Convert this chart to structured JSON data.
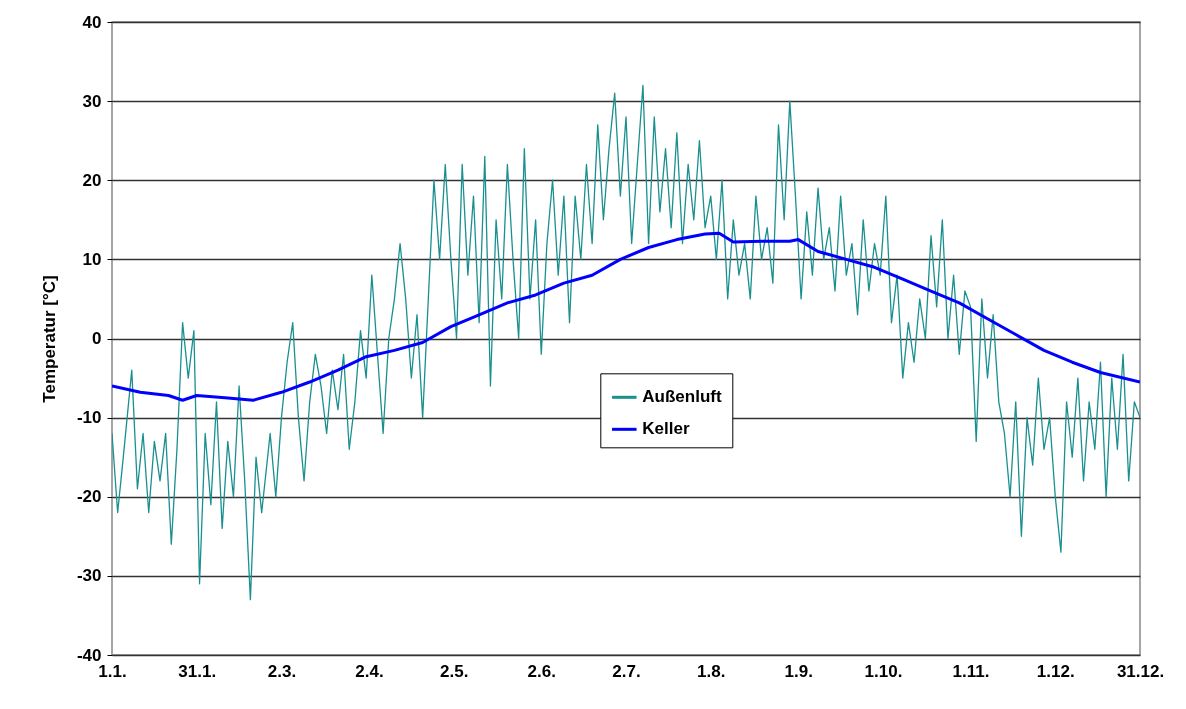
{
  "chart_data": {
    "type": "line",
    "ylabel": "Temperatur [°C]",
    "xlim": [
      "--01-01",
      "--12-31"
    ],
    "xticks": [
      {
        "value": "--01-01",
        "label": "1.1."
      },
      {
        "value": "--01-31",
        "label": "31.1."
      },
      {
        "value": "--03-02",
        "label": "2.3."
      },
      {
        "value": "--04-02",
        "label": "2.4."
      },
      {
        "value": "--05-02",
        "label": "2.5."
      },
      {
        "value": "--06-02",
        "label": "2.6."
      },
      {
        "value": "--07-02",
        "label": "2.7."
      },
      {
        "value": "--08-01",
        "label": "1.8."
      },
      {
        "value": "--09-01",
        "label": "1.9."
      },
      {
        "value": "--10-01",
        "label": "1.10."
      },
      {
        "value": "--11-01",
        "label": "1.11."
      },
      {
        "value": "--12-01",
        "label": "1.12."
      },
      {
        "value": "--12-31",
        "label": "31.12."
      }
    ],
    "ylim": [
      -40,
      40
    ],
    "yticks": [
      -40,
      -30,
      -20,
      -10,
      0,
      10,
      20,
      30,
      40
    ],
    "grid": "y",
    "legend": "center",
    "series": [
      {
        "name": "Außenluft",
        "color": "#1a8f8f",
        "x": [
          "--01-01",
          "--01-03",
          "--01-05",
          "--01-08",
          "--01-10",
          "--01-12",
          "--01-14",
          "--01-16",
          "--01-18",
          "--01-20",
          "--01-22",
          "--01-24",
          "--01-26",
          "--01-28",
          "--01-30",
          "--02-01",
          "--02-03",
          "--02-05",
          "--02-07",
          "--02-09",
          "--02-11",
          "--02-13",
          "--02-15",
          "--02-17",
          "--02-19",
          "--02-21",
          "--02-23",
          "--02-26",
          "--02-28",
          "--03-02",
          "--03-04",
          "--03-06",
          "--03-08",
          "--03-10",
          "--03-12",
          "--03-14",
          "--03-16",
          "--03-18",
          "--03-20",
          "--03-22",
          "--03-24",
          "--03-26",
          "--03-28",
          "--03-30",
          "--04-01",
          "--04-03",
          "--04-05",
          "--04-07",
          "--04-09",
          "--04-11",
          "--04-13",
          "--04-15",
          "--04-17",
          "--04-19",
          "--04-21",
          "--04-23",
          "--04-25",
          "--04-27",
          "--04-29",
          "--05-01",
          "--05-03",
          "--05-05",
          "--05-07",
          "--05-09",
          "--05-11",
          "--05-13",
          "--05-15",
          "--05-17",
          "--05-19",
          "--05-21",
          "--05-23",
          "--05-25",
          "--05-27",
          "--05-29",
          "--05-31",
          "--06-02",
          "--06-04",
          "--06-06",
          "--06-08",
          "--06-10",
          "--06-12",
          "--06-14",
          "--06-16",
          "--06-18",
          "--06-20",
          "--06-22",
          "--06-24",
          "--06-26",
          "--06-28",
          "--06-30",
          "--07-02",
          "--07-04",
          "--07-06",
          "--07-08",
          "--07-10",
          "--07-12",
          "--07-14",
          "--07-16",
          "--07-18",
          "--07-20",
          "--07-22",
          "--07-24",
          "--07-26",
          "--07-28",
          "--07-30",
          "--08-01",
          "--08-03",
          "--08-05",
          "--08-07",
          "--08-09",
          "--08-11",
          "--08-13",
          "--08-15",
          "--08-17",
          "--08-19",
          "--08-21",
          "--08-23",
          "--08-25",
          "--08-27",
          "--08-29",
          "--08-31",
          "--09-02",
          "--09-04",
          "--09-06",
          "--09-08",
          "--09-10",
          "--09-12",
          "--09-14",
          "--09-16",
          "--09-18",
          "--09-20",
          "--09-22",
          "--09-24",
          "--09-26",
          "--09-28",
          "--09-30",
          "--10-02",
          "--10-04",
          "--10-06",
          "--10-08",
          "--10-10",
          "--10-12",
          "--10-14",
          "--10-16",
          "--10-18",
          "--10-20",
          "--10-22",
          "--10-24",
          "--10-26",
          "--10-28",
          "--10-30",
          "--11-01",
          "--11-03",
          "--11-05",
          "--11-07",
          "--11-09",
          "--11-11",
          "--11-13",
          "--11-15",
          "--11-17",
          "--11-19",
          "--11-21",
          "--11-23",
          "--11-25",
          "--11-27",
          "--11-29",
          "--12-01",
          "--12-03",
          "--12-05",
          "--12-07",
          "--12-09",
          "--12-11",
          "--12-13",
          "--12-15",
          "--12-17",
          "--12-19",
          "--12-21",
          "--12-23",
          "--12-25",
          "--12-27",
          "--12-29",
          "--12-31"
        ],
        "values": [
          -12,
          -22,
          -15,
          -4,
          -19,
          -12,
          -22,
          -13,
          -18,
          -12,
          -26,
          -14,
          2,
          -5,
          1,
          -31,
          -12,
          -21,
          -8,
          -24,
          -13,
          -20,
          -6,
          -18,
          -33,
          -15,
          -22,
          -12,
          -20,
          -10,
          -3,
          2,
          -10,
          -18,
          -8,
          -2,
          -6,
          -12,
          -4,
          -9,
          -2,
          -14,
          -8,
          1,
          -5,
          8,
          -2,
          -12,
          0,
          5,
          12,
          5,
          -5,
          3,
          -10,
          5,
          20,
          10,
          22,
          10,
          0,
          22,
          8,
          18,
          2,
          23,
          -6,
          15,
          5,
          22,
          10,
          0,
          24,
          5,
          15,
          -2,
          12,
          20,
          8,
          18,
          2,
          18,
          10,
          22,
          12,
          27,
          15,
          24,
          31,
          18,
          28,
          12,
          22,
          32,
          12,
          28,
          16,
          24,
          14,
          26,
          12,
          22,
          15,
          25,
          14,
          18,
          10,
          20,
          5,
          15,
          8,
          12,
          5,
          18,
          10,
          14,
          7,
          27,
          15,
          30,
          18,
          5,
          16,
          8,
          19,
          10,
          14,
          6,
          18,
          8,
          12,
          3,
          15,
          6,
          12,
          8,
          18,
          2,
          8,
          -5,
          2,
          -3,
          5,
          0,
          13,
          4,
          15,
          0,
          8,
          -2,
          6,
          4,
          -13,
          5,
          -5,
          3,
          -8,
          -12,
          -20,
          -8,
          -25,
          -10,
          -16,
          -5,
          -14,
          -10,
          -20,
          -27,
          -8,
          -15,
          -5,
          -18,
          -8,
          -14,
          -3,
          -20,
          -5,
          -14,
          -2,
          -18,
          -8,
          -10
        ]
      },
      {
        "name": "Keller",
        "color": "#0000ff",
        "x": [
          "--01-01",
          "--01-11",
          "--01-21",
          "--01-26",
          "--01-31",
          "--02-10",
          "--02-20",
          "--03-02",
          "--03-12",
          "--03-22",
          "--04-01",
          "--04-11",
          "--04-21",
          "--05-01",
          "--05-11",
          "--05-21",
          "--05-31",
          "--06-10",
          "--06-20",
          "--06-30",
          "--07-10",
          "--07-20",
          "--07-30",
          "--08-04",
          "--08-09",
          "--08-19",
          "--08-29",
          "--09-01",
          "--09-08",
          "--09-18",
          "--09-28",
          "--10-08",
          "--10-18",
          "--10-28",
          "--11-07",
          "--11-17",
          "--11-27",
          "--12-07",
          "--12-17",
          "--12-31"
        ],
        "values": [
          -6,
          -6.8,
          -7.2,
          -7.8,
          -7.2,
          -7.5,
          -7.8,
          -6.8,
          -5.5,
          -4,
          -2.3,
          -1.5,
          -0.5,
          1.5,
          3,
          4.5,
          5.5,
          7,
          8,
          10,
          11.5,
          12.5,
          13.2,
          13.3,
          12.2,
          12.3,
          12.3,
          12.5,
          11,
          10,
          9,
          7.5,
          6,
          4.5,
          2.5,
          0.5,
          -1.5,
          -3,
          -4.3,
          -5.5
        ]
      }
    ]
  }
}
